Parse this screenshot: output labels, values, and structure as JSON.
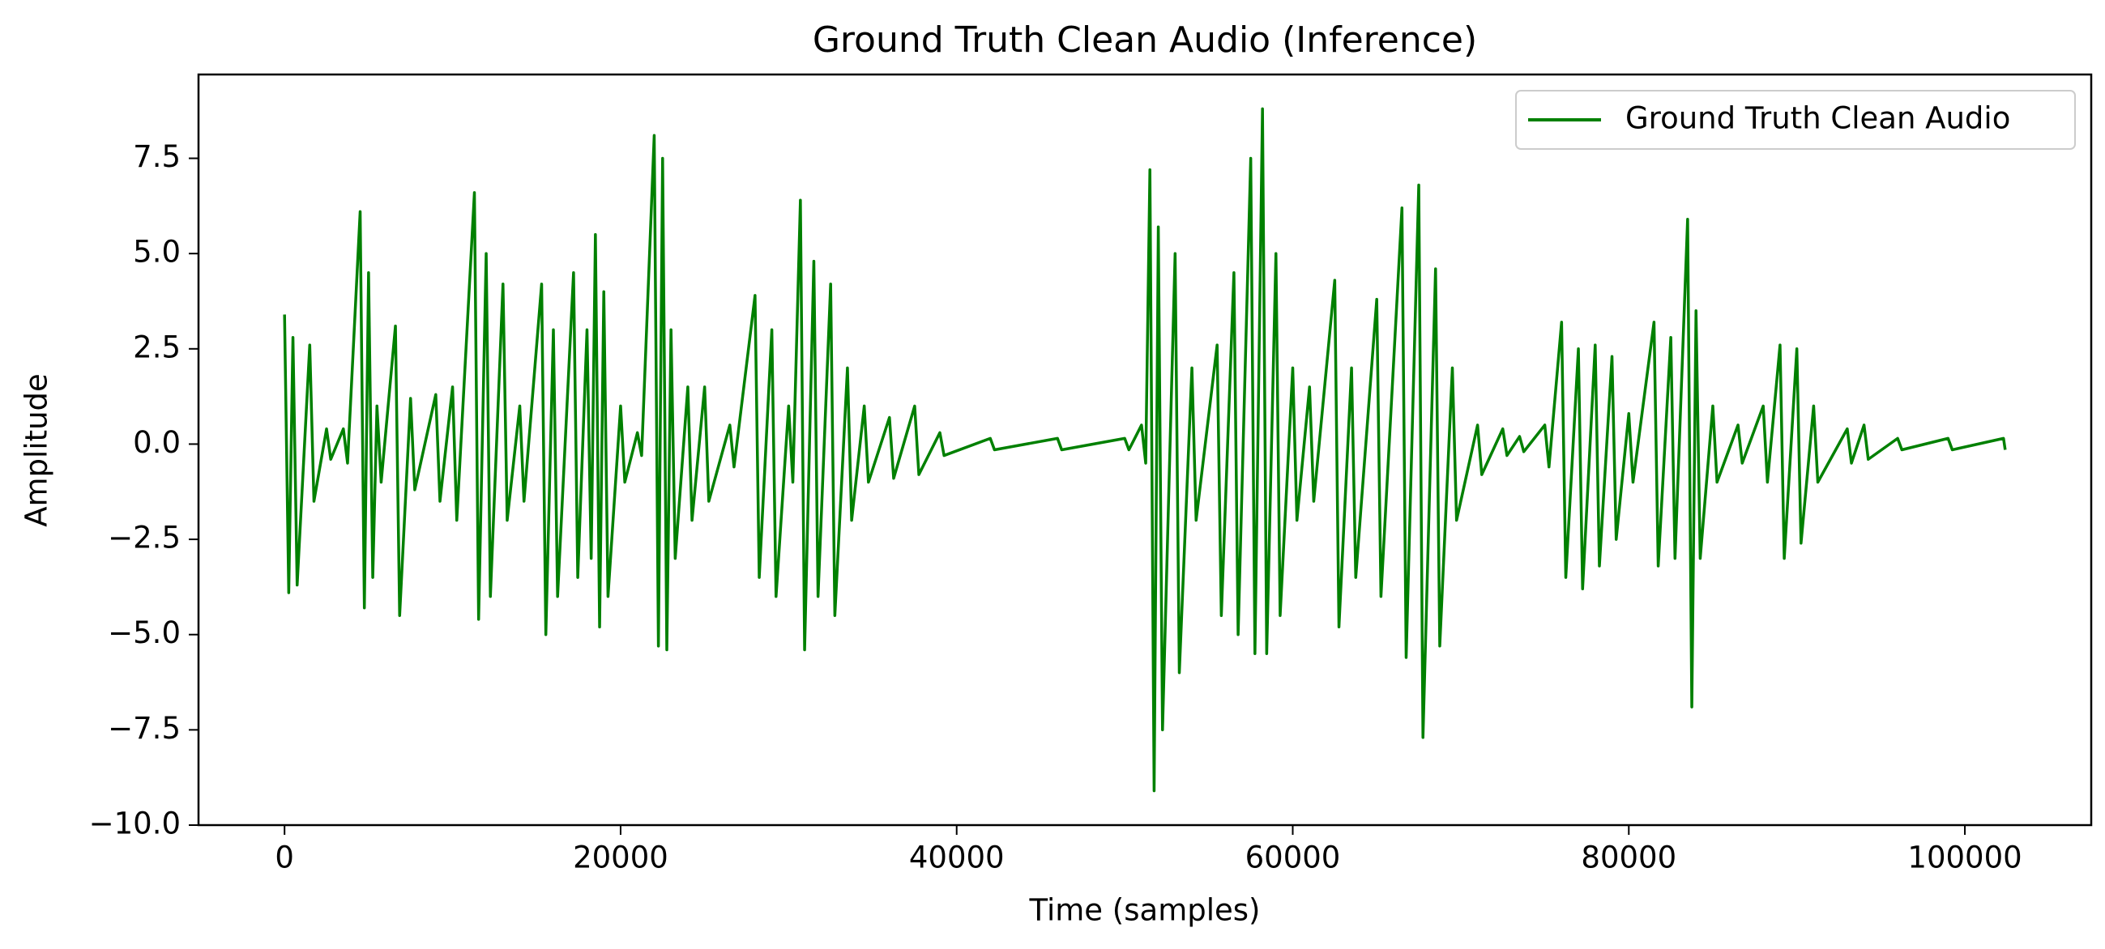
{
  "chart_data": {
    "type": "line",
    "title": "Ground Truth Clean Audio (Inference)",
    "xlabel": "Time (samples)",
    "ylabel": "Amplitude",
    "x": [
      0,
      250,
      500,
      750,
      1500,
      1750,
      2500,
      2750,
      3500,
      3750,
      4500,
      4750,
      5000,
      5250,
      5500,
      5750,
      6600,
      6850,
      7500,
      7750,
      9000,
      9250,
      10000,
      10250,
      11300,
      11550,
      12000,
      12250,
      13000,
      13250,
      14000,
      14250,
      15300,
      15550,
      16000,
      16250,
      17200,
      17450,
      18000,
      18250,
      18500,
      18750,
      19000,
      19250,
      20000,
      20250,
      21000,
      21250,
      22000,
      22250,
      22500,
      22750,
      23000,
      23250,
      24000,
      24250,
      25000,
      25250,
      26500,
      26750,
      28000,
      28250,
      29000,
      29250,
      30000,
      30250,
      30700,
      30950,
      31500,
      31750,
      32500,
      32750,
      33500,
      33750,
      34500,
      34750,
      36000,
      36250,
      37500,
      37750,
      39000,
      39250,
      42000,
      42250,
      46000,
      46250,
      50000,
      50250,
      51000,
      51250,
      51500,
      51750,
      52000,
      52250,
      53000,
      53250,
      54000,
      54250,
      55500,
      55750,
      56500,
      56750,
      57500,
      57750,
      58200,
      58450,
      59000,
      59250,
      60000,
      60250,
      61000,
      61250,
      62500,
      62750,
      63500,
      63750,
      65000,
      65250,
      66500,
      66750,
      67500,
      67750,
      68500,
      68750,
      69500,
      69750,
      71000,
      71250,
      72500,
      72750,
      73500,
      73750,
      75000,
      75250,
      76000,
      76250,
      77000,
      77250,
      78000,
      78250,
      79000,
      79250,
      80000,
      80250,
      81500,
      81750,
      82500,
      82750,
      83500,
      83750,
      84000,
      84250,
      85000,
      85250,
      86500,
      86750,
      88000,
      88250,
      89000,
      89250,
      90000,
      90250,
      91000,
      91250,
      93000,
      93250,
      94000,
      94250,
      96000,
      96250,
      99000,
      99250,
      102300,
      102400
    ],
    "series": [
      {
        "name": "Ground Truth Clean Audio",
        "color": "#008000",
        "values": [
          3.4,
          -3.9,
          2.8,
          -3.7,
          2.6,
          -1.5,
          0.4,
          -0.4,
          0.4,
          -0.5,
          6.1,
          -4.3,
          4.5,
          -3.5,
          1,
          -1,
          3.1,
          -4.5,
          1.2,
          -1.2,
          1.3,
          -1.5,
          1.5,
          -2,
          6.6,
          -4.6,
          5,
          -4,
          4.2,
          -2,
          1,
          -1.5,
          4.2,
          -5,
          3,
          -4,
          4.5,
          -3.5,
          3,
          -3,
          5.5,
          -4.8,
          4,
          -4,
          1,
          -1,
          0.3,
          -0.3,
          8.1,
          -5.3,
          7.5,
          -5.4,
          3,
          -3,
          1.5,
          -2,
          1.5,
          -1.5,
          0.5,
          -0.6,
          3.9,
          -3.5,
          3,
          -4,
          1,
          -1,
          6.4,
          -5.4,
          4.8,
          -4,
          4.2,
          -4.5,
          2,
          -2,
          1,
          -1,
          0.7,
          -0.9,
          1,
          -0.8,
          0.3,
          -0.3,
          0.15,
          -0.15,
          0.15,
          -0.15,
          0.15,
          -0.15,
          0.5,
          -0.5,
          7.2,
          -9.1,
          5.7,
          -7.5,
          5,
          -6,
          2,
          -2,
          2.6,
          -4.5,
          4.5,
          -5,
          7.5,
          -5.5,
          8.8,
          -5.5,
          5,
          -4.5,
          2,
          -2,
          1.5,
          -1.5,
          4.3,
          -4.8,
          2,
          -3.5,
          3.8,
          -4,
          6.2,
          -5.6,
          6.8,
          -7.7,
          4.6,
          -5.3,
          2,
          -2,
          0.5,
          -0.8,
          0.4,
          -0.3,
          0.2,
          -0.2,
          0.5,
          -0.6,
          3.2,
          -3.5,
          2.5,
          -3.8,
          2.6,
          -3.2,
          2.3,
          -2.5,
          0.8,
          -1,
          3.2,
          -3.2,
          2.8,
          -3,
          5.9,
          -6.9,
          3.5,
          -3,
          1,
          -1,
          0.5,
          -0.5,
          1,
          -1,
          2.6,
          -3,
          2.5,
          -2.6,
          1,
          -1,
          0.4,
          -0.5,
          0.5,
          -0.4,
          0.15,
          -0.15,
          0.15,
          -0.15,
          0.15,
          -0.15
        ]
      }
    ],
    "xlim": [
      -5120,
      107520
    ],
    "xticks": [
      0,
      20000,
      40000,
      60000,
      80000,
      100000
    ],
    "ylim": [
      -10,
      9.7
    ],
    "yticks": [
      {
        "value": -10,
        "label": "−10.0"
      },
      {
        "value": -7.5,
        "label": "−7.5"
      },
      {
        "value": -5,
        "label": "−5.0"
      },
      {
        "value": -2.5,
        "label": "−2.5"
      },
      {
        "value": 0,
        "label": "0.0"
      },
      {
        "value": 2.5,
        "label": "2.5"
      },
      {
        "value": 5,
        "label": "5.0"
      },
      {
        "value": 7.5,
        "label": "7.5"
      }
    ],
    "grid": false,
    "legend": "upper right"
  }
}
